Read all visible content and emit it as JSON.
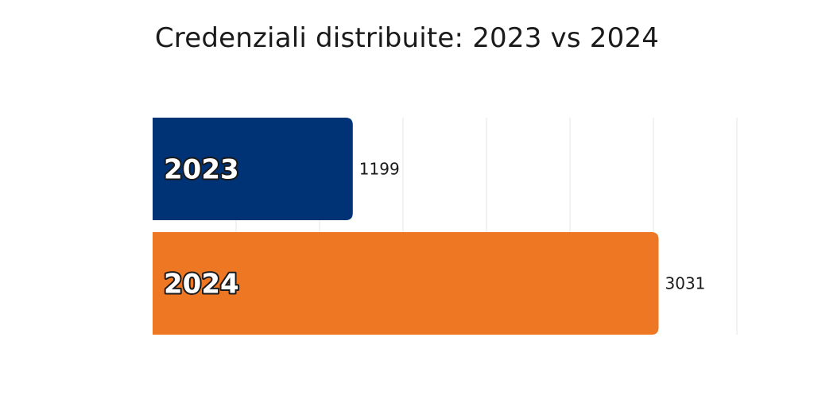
{
  "chart_data": {
    "type": "bar",
    "orientation": "horizontal",
    "title": "Credenziali distribuite: 2023 vs 2024",
    "xlabel": "",
    "ylabel": "",
    "categories": [
      "2023",
      "2024"
    ],
    "values": [
      1199,
      3031
    ],
    "value_labels": [
      "1199",
      "3031"
    ],
    "colors": [
      "#003276",
      "#ED7723"
    ],
    "xlim": [
      0,
      3500
    ],
    "grid": true,
    "legend": "none"
  }
}
